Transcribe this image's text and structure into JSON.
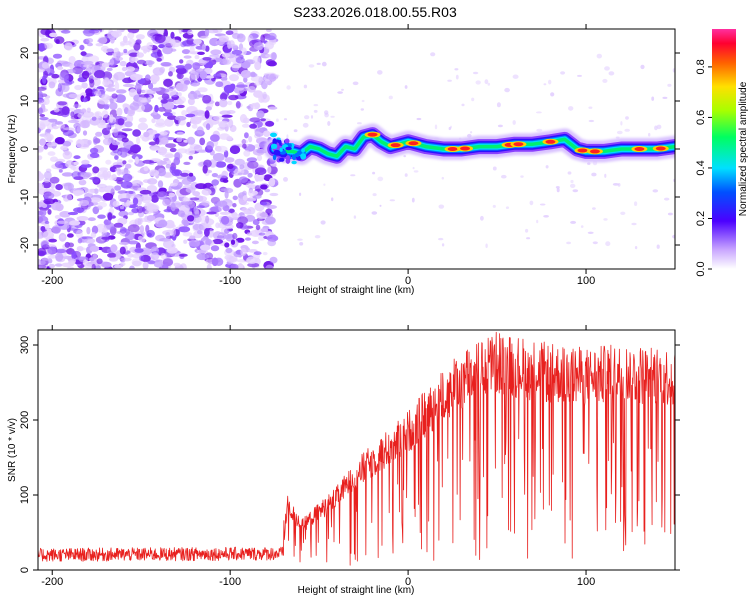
{
  "title": "S233.2026.018.00.55.R03",
  "chart_data": [
    {
      "type": "heatmap",
      "xlabel": "Height of straight line (km)",
      "ylabel": "Frequency (Hz)",
      "xlim": [
        -208,
        150
      ],
      "ylim": [
        -25,
        25
      ],
      "xticks": [
        -200,
        -100,
        0,
        100
      ],
      "yticks": [
        -20,
        -10,
        0,
        10,
        20
      ],
      "noise_region_x": [
        -208,
        -75
      ],
      "ridge": {
        "x": [
          -75,
          -70,
          -65,
          -60,
          -55,
          -50,
          -45,
          -40,
          -35,
          -30,
          -25,
          -20,
          -15,
          -10,
          -5,
          0,
          10,
          20,
          30,
          40,
          50,
          60,
          70,
          80,
          88,
          95,
          100,
          110,
          120,
          130,
          140,
          150
        ],
        "y": [
          0.0,
          -0.5,
          -0.5,
          -1.0,
          0.5,
          0.0,
          -1.0,
          -1.5,
          0.5,
          0.0,
          2.5,
          3.0,
          1.5,
          0.5,
          1.0,
          1.5,
          0.5,
          0.0,
          0.0,
          0.5,
          0.5,
          1.0,
          1.0,
          1.5,
          2.0,
          0.0,
          -0.5,
          -0.5,
          0.0,
          0.0,
          0.0,
          0.5
        ]
      },
      "colorbar": {
        "label": "Normalized spectral amplitude",
        "ticks": [
          0.0,
          0.2,
          0.4,
          0.6,
          0.8
        ],
        "ticklabels": [
          "0.0",
          "0.2",
          "0.4",
          "0.6",
          "0.8"
        ],
        "range": [
          0,
          0.95
        ]
      }
    },
    {
      "type": "line",
      "xlabel": "Height of straight line (km)",
      "ylabel": "SNR (10 * v/v)",
      "xlim": [
        -208,
        150
      ],
      "ylim": [
        0,
        320
      ],
      "xticks": [
        -200,
        -100,
        0,
        100
      ],
      "yticks": [
        0,
        100,
        200,
        300
      ],
      "series": [
        {
          "name": "SNR",
          "color": "#e8201e",
          "envelope": {
            "x": [
              -208,
              -70,
              -68,
              -60,
              -50,
              -40,
              -30,
              -20,
              -10,
              0,
              10,
              20,
              30,
              40,
              50,
              60,
              80,
              100,
              120,
              150
            ],
            "y": [
              20,
              22,
              90,
              60,
              80,
              100,
              130,
              150,
              170,
              190,
              215,
              240,
              260,
              275,
              285,
              280,
              270,
              265,
              270,
              265
            ]
          }
        }
      ]
    }
  ]
}
